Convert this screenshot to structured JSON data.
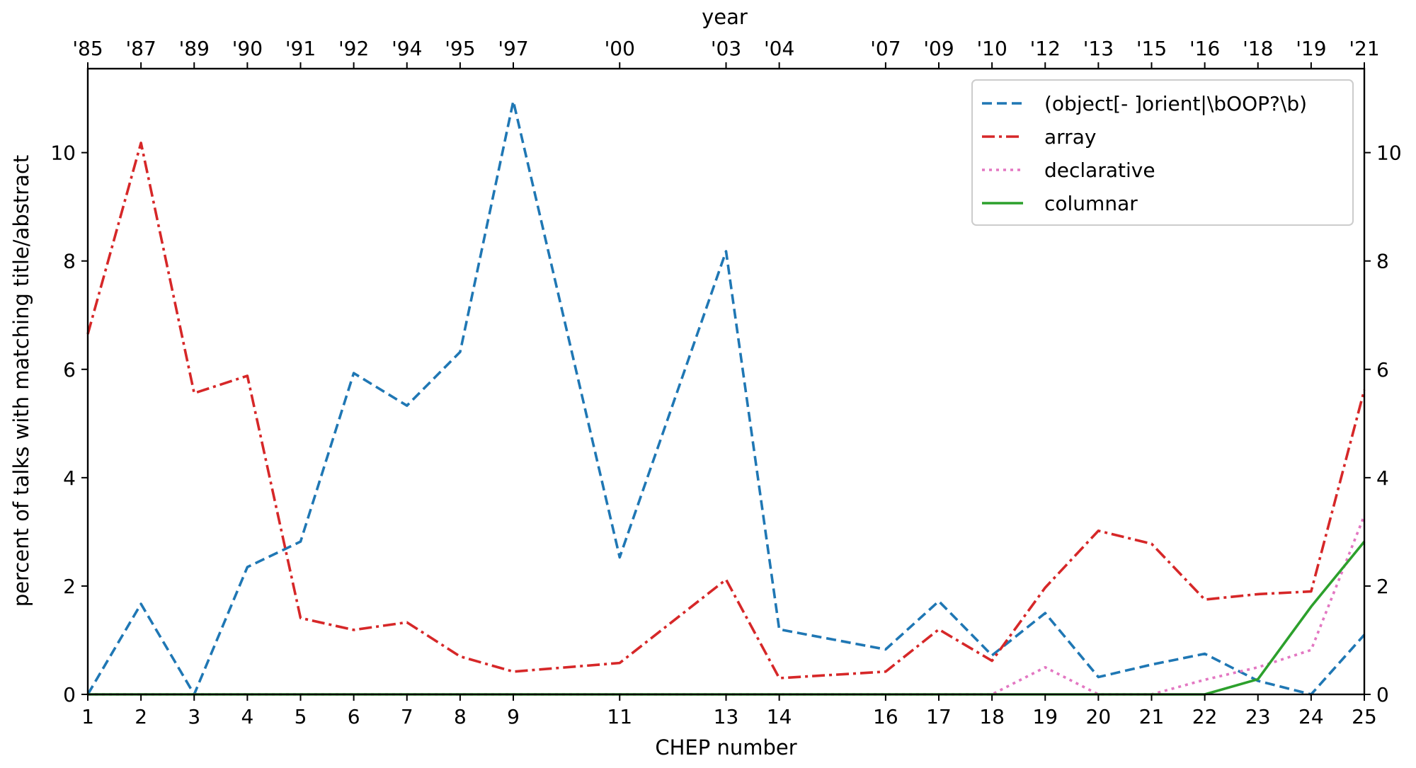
{
  "chart_data": {
    "type": "line",
    "xlabel": "CHEP number",
    "ylabel": "percent of talks with matching title/abstract",
    "top_xlabel": "year",
    "xlim": [
      1,
      25
    ],
    "ylim": [
      0,
      11.55
    ],
    "x_ticks": [
      1,
      2,
      3,
      4,
      5,
      6,
      7,
      8,
      9,
      11,
      13,
      14,
      16,
      17,
      18,
      19,
      20,
      21,
      22,
      23,
      24,
      25
    ],
    "x_tick_labels": [
      "1",
      "2",
      "3",
      "4",
      "5",
      "6",
      "7",
      "8",
      "9",
      "11",
      "13",
      "14",
      "16",
      "17",
      "18",
      "19",
      "20",
      "21",
      "22",
      "23",
      "24",
      "25"
    ],
    "top_ticks": [
      1,
      2,
      3,
      4,
      5,
      6,
      7,
      8,
      9,
      11,
      13,
      14,
      16,
      17,
      18,
      19,
      20,
      21,
      22,
      23,
      24,
      25
    ],
    "top_tick_labels": [
      "'85",
      "'87",
      "'89",
      "'90",
      "'91",
      "'92",
      "'94",
      "'95",
      "'97",
      "'00",
      "'03",
      "'04",
      "'07",
      "'09",
      "'10",
      "'12",
      "'13",
      "'15",
      "'16",
      "'18",
      "'19",
      "'21"
    ],
    "y_ticks": [
      0,
      2,
      4,
      6,
      8,
      10
    ],
    "y_tick_labels": [
      "0",
      "2",
      "4",
      "6",
      "8",
      "10"
    ],
    "grid": false,
    "legend_position": "top-right",
    "x": [
      1,
      2,
      3,
      4,
      5,
      6,
      7,
      8,
      9,
      11,
      13,
      14,
      16,
      17,
      18,
      19,
      20,
      21,
      22,
      23,
      24,
      25
    ],
    "series": [
      {
        "name": "(object[- ]orient|\\bOOP?\\b)",
        "color": "#1f77b4",
        "style": "dashed",
        "values": [
          0,
          1.67,
          0,
          2.35,
          2.82,
          5.93,
          5.33,
          6.32,
          10.95,
          2.53,
          8.18,
          1.2,
          0.83,
          1.72,
          0.72,
          1.5,
          0.32,
          0.55,
          0.75,
          0.25,
          0.0,
          1.1
        ]
      },
      {
        "name": "array",
        "color": "#d62728",
        "style": "dashdot",
        "values": [
          6.65,
          10.18,
          5.56,
          5.88,
          1.41,
          1.19,
          1.33,
          0.7,
          0.42,
          0.58,
          2.12,
          0.3,
          0.42,
          1.2,
          0.62,
          1.97,
          3.02,
          2.78,
          1.75,
          1.85,
          1.9,
          5.62
        ]
      },
      {
        "name": "declarative",
        "color": "#e377c2",
        "style": "dotted",
        "values": [
          0,
          0,
          0,
          0,
          0,
          0,
          0,
          0,
          0,
          0,
          0,
          0,
          0,
          0,
          0.0,
          0.5,
          0.0,
          0.0,
          0.27,
          0.5,
          0.82,
          3.3
        ]
      },
      {
        "name": "columnar",
        "color": "#2ca02c",
        "style": "solid",
        "values": [
          0,
          0,
          0,
          0,
          0,
          0,
          0,
          0,
          0,
          0,
          0,
          0,
          0,
          0,
          0,
          0,
          0,
          0,
          0,
          0.28,
          1.62,
          2.82
        ]
      }
    ]
  }
}
